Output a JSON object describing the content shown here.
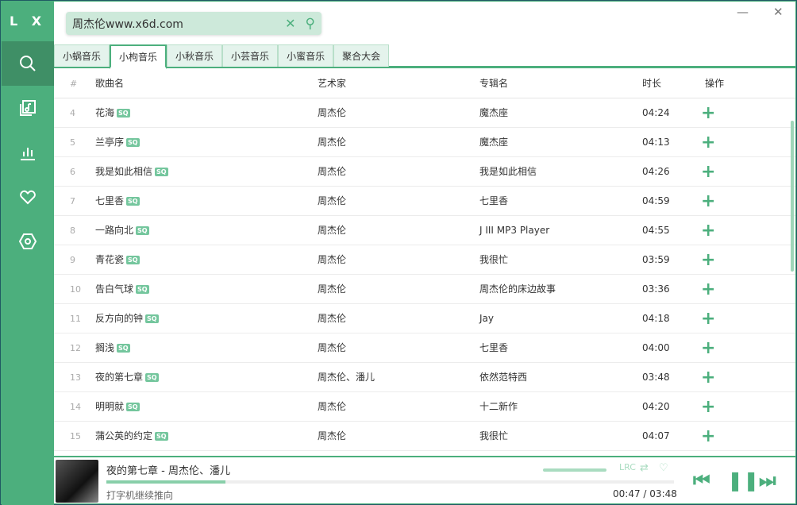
{
  "app": {
    "logo": "L X"
  },
  "sidebar": {
    "items": [
      {
        "name": "search",
        "icon": "search-icon"
      },
      {
        "name": "song-list",
        "icon": "music-list-icon"
      },
      {
        "name": "leaderboard",
        "icon": "chart-icon"
      },
      {
        "name": "my-list",
        "icon": "heart-icon"
      },
      {
        "name": "settings",
        "icon": "settings-icon"
      }
    ]
  },
  "search": {
    "value": "周杰伦www.x6d.com"
  },
  "window": {
    "minimize": "—",
    "close": "✕"
  },
  "tabs": [
    "小蜗音乐",
    "小枸音乐",
    "小秋音乐",
    "小芸音乐",
    "小蜜音乐",
    "聚合大会"
  ],
  "active_tab": 1,
  "table": {
    "headers": [
      "#",
      "歌曲名",
      "艺术家",
      "专辑名",
      "时长",
      "操作"
    ],
    "badge": "SQ",
    "rows": [
      {
        "n": "4",
        "name": "花海",
        "artist": "周杰伦",
        "album": "魔杰座",
        "time": "04:24"
      },
      {
        "n": "5",
        "name": "兰亭序",
        "artist": "周杰伦",
        "album": "魔杰座",
        "time": "04:13"
      },
      {
        "n": "6",
        "name": "我是如此相信",
        "artist": "周杰伦",
        "album": "我是如此相信",
        "time": "04:26"
      },
      {
        "n": "7",
        "name": "七里香",
        "artist": "周杰伦",
        "album": "七里香",
        "time": "04:59"
      },
      {
        "n": "8",
        "name": "一路向北",
        "artist": "周杰伦",
        "album": "J III MP3 Player",
        "time": "04:55"
      },
      {
        "n": "9",
        "name": "青花瓷",
        "artist": "周杰伦",
        "album": "我很忙",
        "time": "03:59"
      },
      {
        "n": "10",
        "name": "告白气球",
        "artist": "周杰伦",
        "album": "周杰伦的床边故事",
        "time": "03:36"
      },
      {
        "n": "11",
        "name": "反方向的钟",
        "artist": "周杰伦",
        "album": "Jay",
        "time": "04:18"
      },
      {
        "n": "12",
        "name": "搁浅",
        "artist": "周杰伦",
        "album": "七里香",
        "time": "04:00"
      },
      {
        "n": "13",
        "name": "夜的第七章",
        "artist": "周杰伦、潘儿",
        "album": "依然范特西",
        "time": "03:48"
      },
      {
        "n": "14",
        "name": "明明就",
        "artist": "周杰伦",
        "album": "十二新作",
        "time": "04:20"
      },
      {
        "n": "15",
        "name": "蒲公英的约定",
        "artist": "周杰伦",
        "album": "我很忙",
        "time": "04:07"
      }
    ]
  },
  "player": {
    "title": "夜的第七章 - 周杰伦、潘儿",
    "lyric": "打字机继续推向",
    "current": "00:47",
    "sep": "/",
    "duration": "03:48",
    "progress": 0.21,
    "volume": 1.0,
    "lrc": "LRC"
  },
  "colors": {
    "accent": "#4caf7d",
    "sidebar_active": "#3f8f66"
  }
}
